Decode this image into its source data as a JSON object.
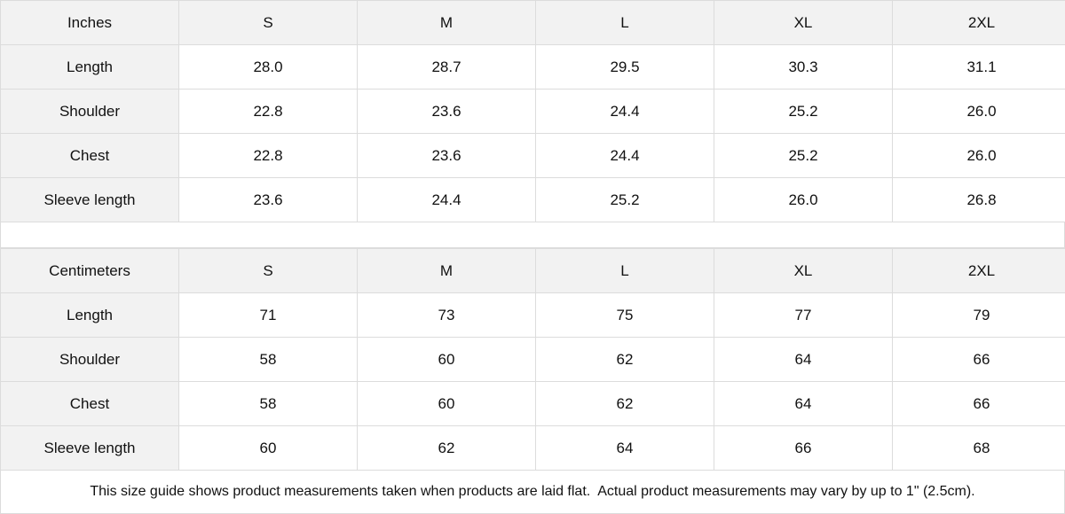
{
  "tables": [
    {
      "unit_label": "Inches",
      "sizes": [
        "S",
        "M",
        "L",
        "XL",
        "2XL"
      ],
      "rows": [
        {
          "label": "Length",
          "values": [
            "28.0",
            "28.7",
            "29.5",
            "30.3",
            "31.1"
          ]
        },
        {
          "label": "Shoulder",
          "values": [
            "22.8",
            "23.6",
            "24.4",
            "25.2",
            "26.0"
          ]
        },
        {
          "label": "Chest",
          "values": [
            "22.8",
            "23.6",
            "24.4",
            "25.2",
            "26.0"
          ]
        },
        {
          "label": "Sleeve length",
          "values": [
            "23.6",
            "24.4",
            "25.2",
            "26.0",
            "26.8"
          ]
        }
      ]
    },
    {
      "unit_label": "Centimeters",
      "sizes": [
        "S",
        "M",
        "L",
        "XL",
        "2XL"
      ],
      "rows": [
        {
          "label": "Length",
          "values": [
            "71",
            "73",
            "75",
            "77",
            "79"
          ]
        },
        {
          "label": "Shoulder",
          "values": [
            "58",
            "60",
            "62",
            "64",
            "66"
          ]
        },
        {
          "label": "Chest",
          "values": [
            "58",
            "60",
            "62",
            "64",
            "66"
          ]
        },
        {
          "label": "Sleeve length",
          "values": [
            "60",
            "62",
            "64",
            "66",
            "68"
          ]
        }
      ]
    }
  ],
  "note": "This size guide shows product measurements taken when products are laid flat.  Actual product measurements may vary by up to 1\" (2.5cm)."
}
